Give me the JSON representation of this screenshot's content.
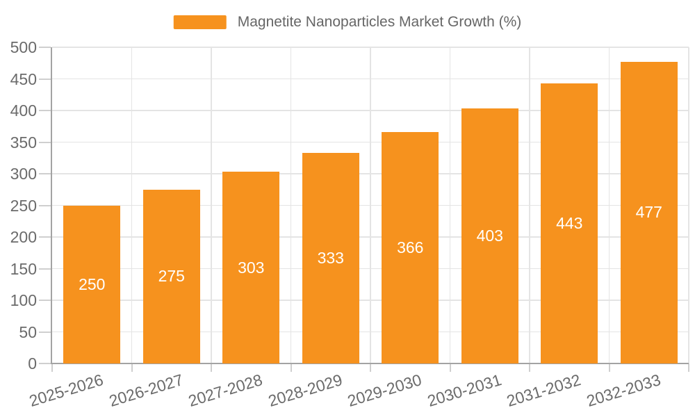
{
  "legend": {
    "label": "Magnetite Nanoparticles Market Growth (%)"
  },
  "chart_data": {
    "type": "bar",
    "title": "Magnetite Nanoparticles Market Growth (%)",
    "categories": [
      "2025-2026",
      "2026-2027",
      "2027-2028",
      "2028-2029",
      "2029-2030",
      "2030-2031",
      "2031-2032",
      "2032-2033"
    ],
    "values": [
      250,
      275,
      303,
      333,
      366,
      403,
      443,
      477
    ],
    "xlabel": "",
    "ylabel": "",
    "ylim": [
      0,
      500
    ],
    "ytick_step": 50,
    "ytick_labels": [
      "0",
      "50",
      "100",
      "150",
      "200",
      "250",
      "300",
      "350",
      "400",
      "450",
      "500"
    ],
    "grid": true,
    "legend_position": "top-center",
    "x_label_rotation_deg": 17,
    "value_labels_inside": true,
    "colors": {
      "bar": "#F6921E",
      "value_label": "#FFFFFF",
      "axis_line": "#A3A3A3",
      "gridline": "#E4E4E4",
      "tick": "#CFCFCF",
      "tick_text": "#6B6B6B",
      "legend_text": "#666666",
      "background": "#FFFFFF"
    }
  }
}
